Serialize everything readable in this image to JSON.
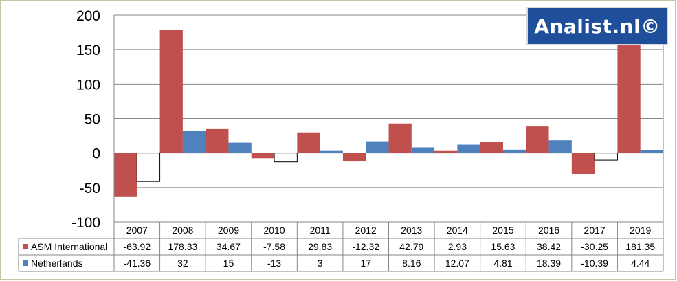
{
  "chart_data": {
    "type": "bar",
    "categories": [
      "2007",
      "2008",
      "2009",
      "2010",
      "2011",
      "2012",
      "2013",
      "2014",
      "2015",
      "2016",
      "2017",
      "2019"
    ],
    "series": [
      {
        "name": "ASM International",
        "color": "#c0504d",
        "values": [
          -63.92,
          178.33,
          34.67,
          -7.58,
          29.83,
          -12.32,
          42.79,
          2.93,
          15.63,
          38.42,
          -30.25,
          181.35
        ],
        "labels": [
          "-63.92",
          "178.33",
          "34.67",
          "-7.58",
          "29.83",
          "-12.32",
          "42.79",
          "2.93",
          "15.63",
          "38.42",
          "-30.25",
          "181.35"
        ]
      },
      {
        "name": "Netherlands",
        "color": "#4f81bd",
        "negative_fill": "#ffffff",
        "values": [
          -41.36,
          32,
          15,
          -13,
          3,
          17,
          8.16,
          12.07,
          4.81,
          18.39,
          -10.39,
          4.44
        ],
        "labels": [
          "-41.36",
          "32",
          "15",
          "-13",
          "3",
          "17",
          "8.16",
          "12.07",
          "4.81",
          "18.39",
          "-10.39",
          "4.44"
        ]
      }
    ],
    "ylim": [
      -100,
      200
    ],
    "yticks": [
      "200",
      "150",
      "100",
      "50",
      "0",
      "-50",
      "-100"
    ],
    "grid": true,
    "legend": "data-table"
  },
  "watermark": "Analist.nl©"
}
